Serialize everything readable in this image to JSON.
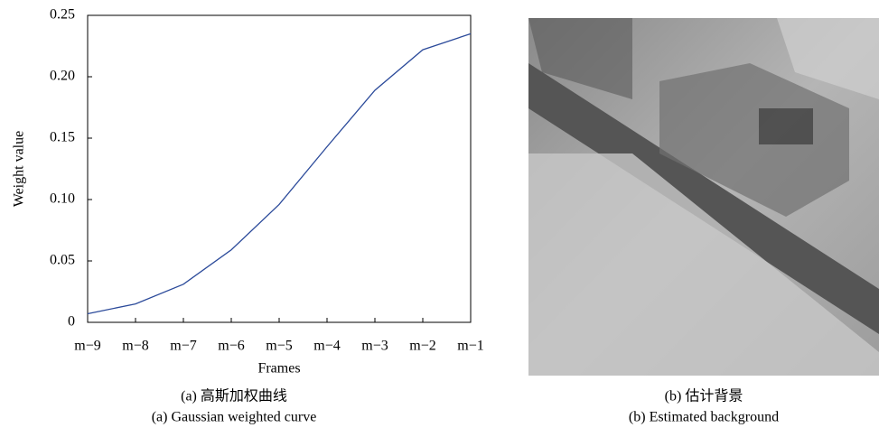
{
  "chart_data": {
    "type": "line",
    "xlabel": "Frames",
    "ylabel": "Weight value",
    "categories": [
      "m−9",
      "m−8",
      "m−7",
      "m−6",
      "m−5",
      "m−4",
      "m−3",
      "m−2",
      "m−1"
    ],
    "series": [
      {
        "color": "#2b4a9a",
        "values": [
          0.007,
          0.015,
          0.031,
          0.059,
          0.096,
          0.143,
          0.189,
          0.222,
          0.235
        ]
      }
    ],
    "ylim": [
      0,
      0.25
    ],
    "yticks": [
      0,
      0.05,
      {
        "value": 0.1,
        "label": "0.10"
      },
      0.15,
      {
        "value": 0.2,
        "label": "0.20"
      },
      0.25
    ]
  },
  "captions": {
    "a": [
      "(a) 高斯加权曲线",
      "(a) Gaussian weighted curve"
    ],
    "b": [
      "(b) 估计背景",
      "(b) Estimated background"
    ]
  }
}
